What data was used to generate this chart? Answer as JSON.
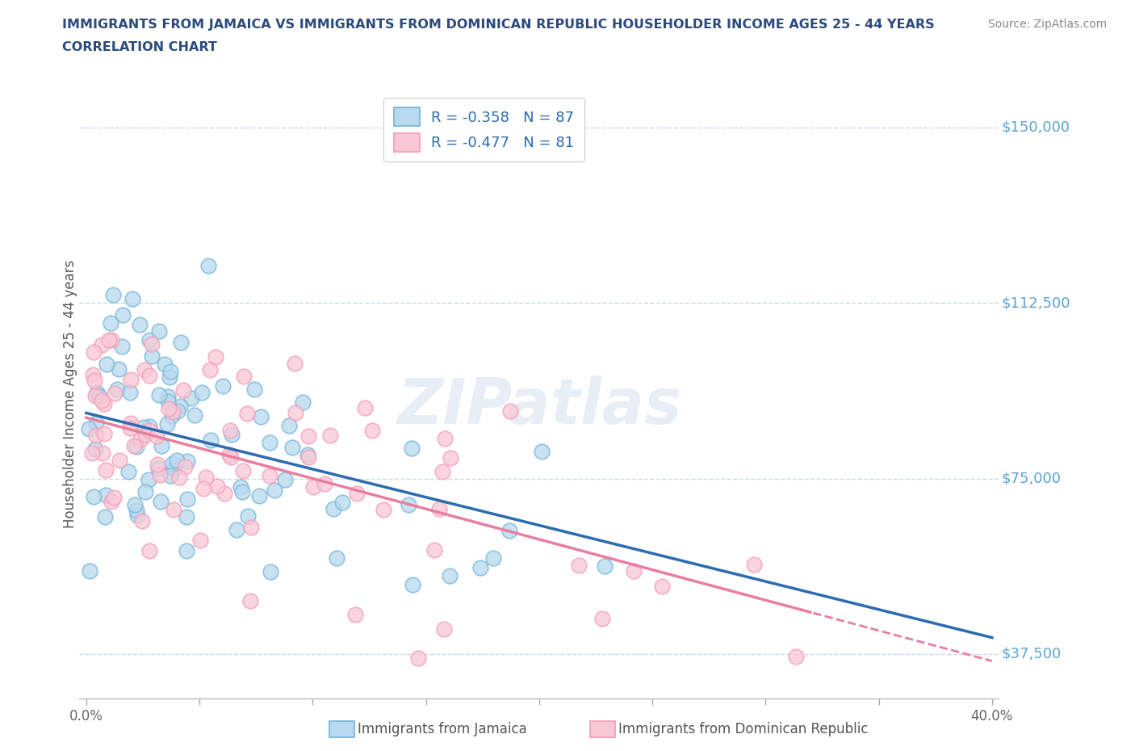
{
  "title_line1": "IMMIGRANTS FROM JAMAICA VS IMMIGRANTS FROM DOMINICAN REPUBLIC HOUSEHOLDER INCOME AGES 25 - 44 YEARS",
  "title_line2": "CORRELATION CHART",
  "source_text": "Source: ZipAtlas.com",
  "ylabel": "Householder Income Ages 25 - 44 years",
  "xlim": [
    -0.003,
    0.403
  ],
  "ylim": [
    28000,
    158000
  ],
  "yticks": [
    37500,
    75000,
    112500,
    150000
  ],
  "ytick_labels": [
    "$37,500",
    "$75,000",
    "$112,500",
    "$150,000"
  ],
  "xtick_vals": [
    0.0,
    0.05,
    0.1,
    0.15,
    0.2,
    0.25,
    0.3,
    0.35,
    0.4
  ],
  "jamaica_color": "#7ab8d9",
  "jamaica_color_fill": "#b8d9ee",
  "dominican_color": "#f4a0b8",
  "dominican_color_fill": "#f9c8d6",
  "trend_jamaica_color": "#2b6cb0",
  "trend_dominican_color": "#e87fa0",
  "R_jamaica": -0.358,
  "N_jamaica": 87,
  "R_dominican": -0.477,
  "N_dominican": 81,
  "legend_label_jamaica": "Immigrants from Jamaica",
  "legend_label_dominican": "Immigrants from Dominican Republic",
  "watermark_text": "ZIPatlas",
  "title_color": "#2c4a7c",
  "source_color": "#888888",
  "ylabel_color": "#555555",
  "tick_color_y": "#5ba4d4",
  "grid_color": "#c8daea",
  "background_color": "#ffffff",
  "trend_j_intercept": 89000,
  "trend_j_slope": -120000,
  "trend_d_intercept": 88000,
  "trend_d_slope": -130000
}
